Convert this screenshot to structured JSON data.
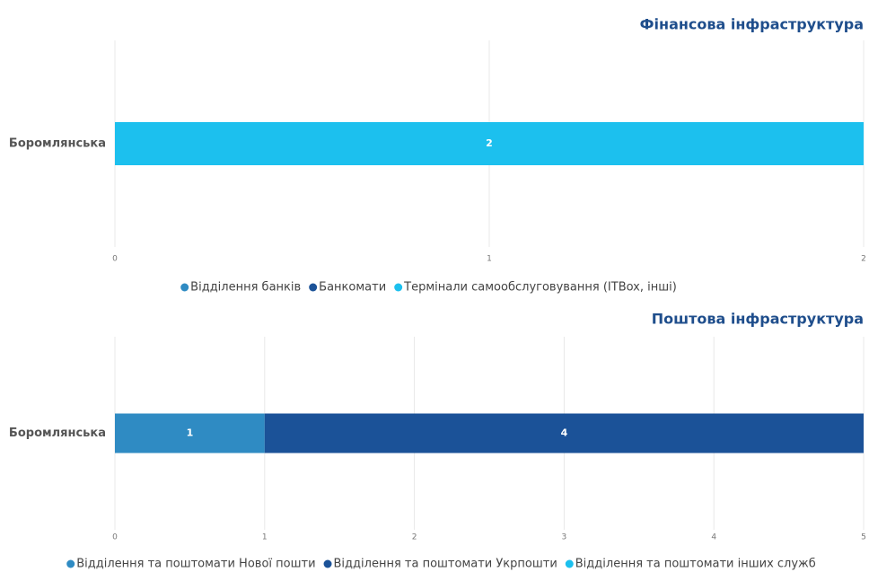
{
  "chart_data": [
    {
      "type": "bar",
      "orientation": "horizontal",
      "stacked": true,
      "title": "Фінансова інфраструктура",
      "categories": [
        "Боромлянська"
      ],
      "series": [
        {
          "name": "Відділення банків",
          "color": "#2f8bc3",
          "values": [
            0
          ]
        },
        {
          "name": "Банкомати",
          "color": "#1b5298",
          "values": [
            0
          ]
        },
        {
          "name": "Термінали самообслуговування (ITBox, інші)",
          "color": "#1cc0ee",
          "values": [
            2
          ]
        }
      ],
      "xlim": [
        0,
        2
      ],
      "xticks": [
        0,
        1,
        2
      ],
      "grid": true,
      "legend": "bottom"
    },
    {
      "type": "bar",
      "orientation": "horizontal",
      "stacked": true,
      "title": "Поштова інфраструктура",
      "categories": [
        "Боромлянська"
      ],
      "series": [
        {
          "name": "Відділення та поштомати Нової пошти",
          "color": "#2f8bc3",
          "values": [
            1
          ]
        },
        {
          "name": "Відділення та поштомати Укрпошти",
          "color": "#1b5298",
          "values": [
            4
          ]
        },
        {
          "name": "Відділення та поштомати інших служб",
          "color": "#1cc0ee",
          "values": [
            0
          ]
        }
      ],
      "xlim": [
        0,
        5
      ],
      "xticks": [
        0,
        1,
        2,
        3,
        4,
        5
      ],
      "grid": true,
      "legend": "bottom"
    }
  ]
}
